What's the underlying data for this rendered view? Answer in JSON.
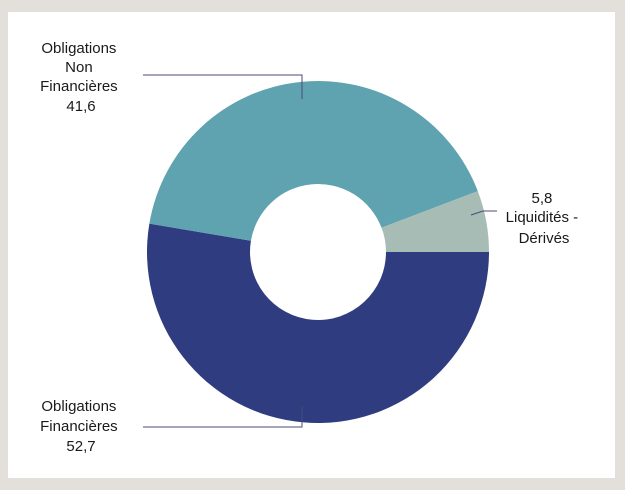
{
  "chart_data": {
    "type": "pie",
    "style": "donut",
    "slices": [
      {
        "label_lines": [
          "Obligations",
          "Financières"
        ],
        "value": 52.7,
        "value_text": "52,7",
        "color": "#2f3d80"
      },
      {
        "label_lines": [
          "Obligations",
          "Non",
          "Financières"
        ],
        "value": 41.6,
        "value_text": "41,6",
        "color": "#60a3b0"
      },
      {
        "label_lines": [
          "Liquidités -",
          "Dérivés"
        ],
        "value": 5.8,
        "value_text": "5,8",
        "color": "#a7bcb5"
      }
    ]
  }
}
